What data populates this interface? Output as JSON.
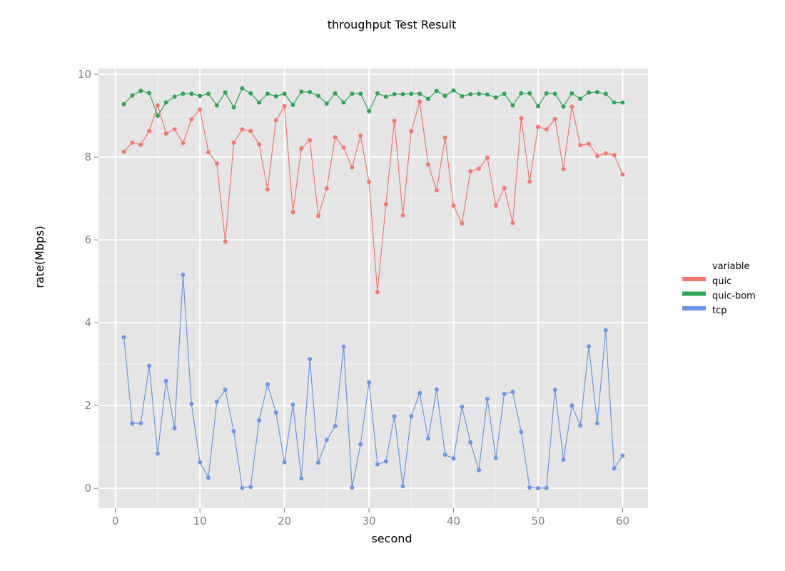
{
  "chart_data": {
    "type": "line",
    "title": "throughput Test Result",
    "xlabel": "second",
    "ylabel": "rate(Mbps)",
    "xlim": [
      -2,
      63
    ],
    "ylim": [
      -0.48,
      10.14
    ],
    "xticks": [
      0,
      10,
      20,
      30,
      40,
      50,
      60
    ],
    "yticks": [
      0,
      2,
      4,
      6,
      8,
      10
    ],
    "grid": true,
    "panel_background": "#e5e5e5",
    "legend": {
      "title": "variable",
      "placement": "right"
    },
    "x": [
      1,
      2,
      3,
      4,
      5,
      6,
      7,
      8,
      9,
      10,
      11,
      12,
      13,
      14,
      15,
      16,
      17,
      18,
      19,
      20,
      21,
      22,
      23,
      24,
      25,
      26,
      27,
      28,
      29,
      30,
      31,
      32,
      33,
      34,
      35,
      36,
      37,
      38,
      39,
      40,
      41,
      42,
      43,
      44,
      45,
      46,
      47,
      48,
      49,
      50,
      51,
      52,
      53,
      54,
      55,
      56,
      57,
      58,
      59,
      60
    ],
    "series": [
      {
        "name": "quic",
        "color": "#f8766d",
        "values": [
          8.13,
          8.35,
          8.3,
          8.63,
          9.25,
          8.57,
          8.67,
          8.34,
          8.91,
          9.15,
          8.12,
          7.85,
          5.96,
          8.35,
          8.67,
          8.63,
          8.31,
          7.22,
          8.89,
          9.23,
          6.67,
          8.21,
          8.41,
          6.58,
          7.24,
          8.48,
          8.23,
          7.75,
          8.52,
          7.4,
          4.74,
          6.86,
          8.88,
          6.59,
          8.63,
          9.34,
          7.82,
          7.2,
          8.47,
          6.83,
          6.4,
          7.66,
          7.72,
          7.99,
          6.83,
          7.25,
          6.41,
          8.94,
          7.41,
          8.73,
          8.67,
          8.92,
          7.71,
          9.22,
          8.29,
          8.32,
          8.03,
          8.09,
          8.05,
          7.58
        ]
      },
      {
        "name": "quic-bom",
        "color": "#31a354",
        "values": [
          9.28,
          9.49,
          9.6,
          9.55,
          9.0,
          9.32,
          9.46,
          9.53,
          9.53,
          9.48,
          9.53,
          9.25,
          9.56,
          9.2,
          9.66,
          9.54,
          9.32,
          9.53,
          9.47,
          9.53,
          9.26,
          9.58,
          9.57,
          9.48,
          9.29,
          9.54,
          9.32,
          9.53,
          9.53,
          9.11,
          9.54,
          9.46,
          9.52,
          9.52,
          9.53,
          9.53,
          9.41,
          9.6,
          9.48,
          9.61,
          9.47,
          9.52,
          9.53,
          9.51,
          9.44,
          9.53,
          9.25,
          9.54,
          9.54,
          9.23,
          9.54,
          9.53,
          9.22,
          9.54,
          9.41,
          9.56,
          9.57,
          9.53,
          9.32,
          9.32
        ]
      },
      {
        "name": "tcp",
        "color": "#6b96e9",
        "values": [
          3.65,
          1.57,
          1.57,
          2.96,
          0.84,
          2.59,
          1.45,
          5.16,
          2.04,
          0.63,
          0.26,
          2.09,
          2.38,
          1.38,
          0.01,
          0.03,
          1.64,
          2.51,
          1.83,
          0.63,
          2.02,
          0.24,
          3.12,
          0.62,
          1.17,
          1.5,
          3.42,
          0.02,
          1.06,
          2.56,
          0.58,
          0.65,
          1.74,
          0.05,
          1.74,
          2.3,
          1.2,
          2.39,
          0.81,
          0.72,
          1.97,
          1.11,
          0.44,
          2.16,
          0.73,
          2.28,
          2.33,
          1.36,
          0.02,
          0.0,
          0.01,
          2.38,
          0.69,
          2.0,
          1.52,
          3.43,
          1.57,
          3.82,
          0.48,
          0.79
        ]
      }
    ]
  }
}
